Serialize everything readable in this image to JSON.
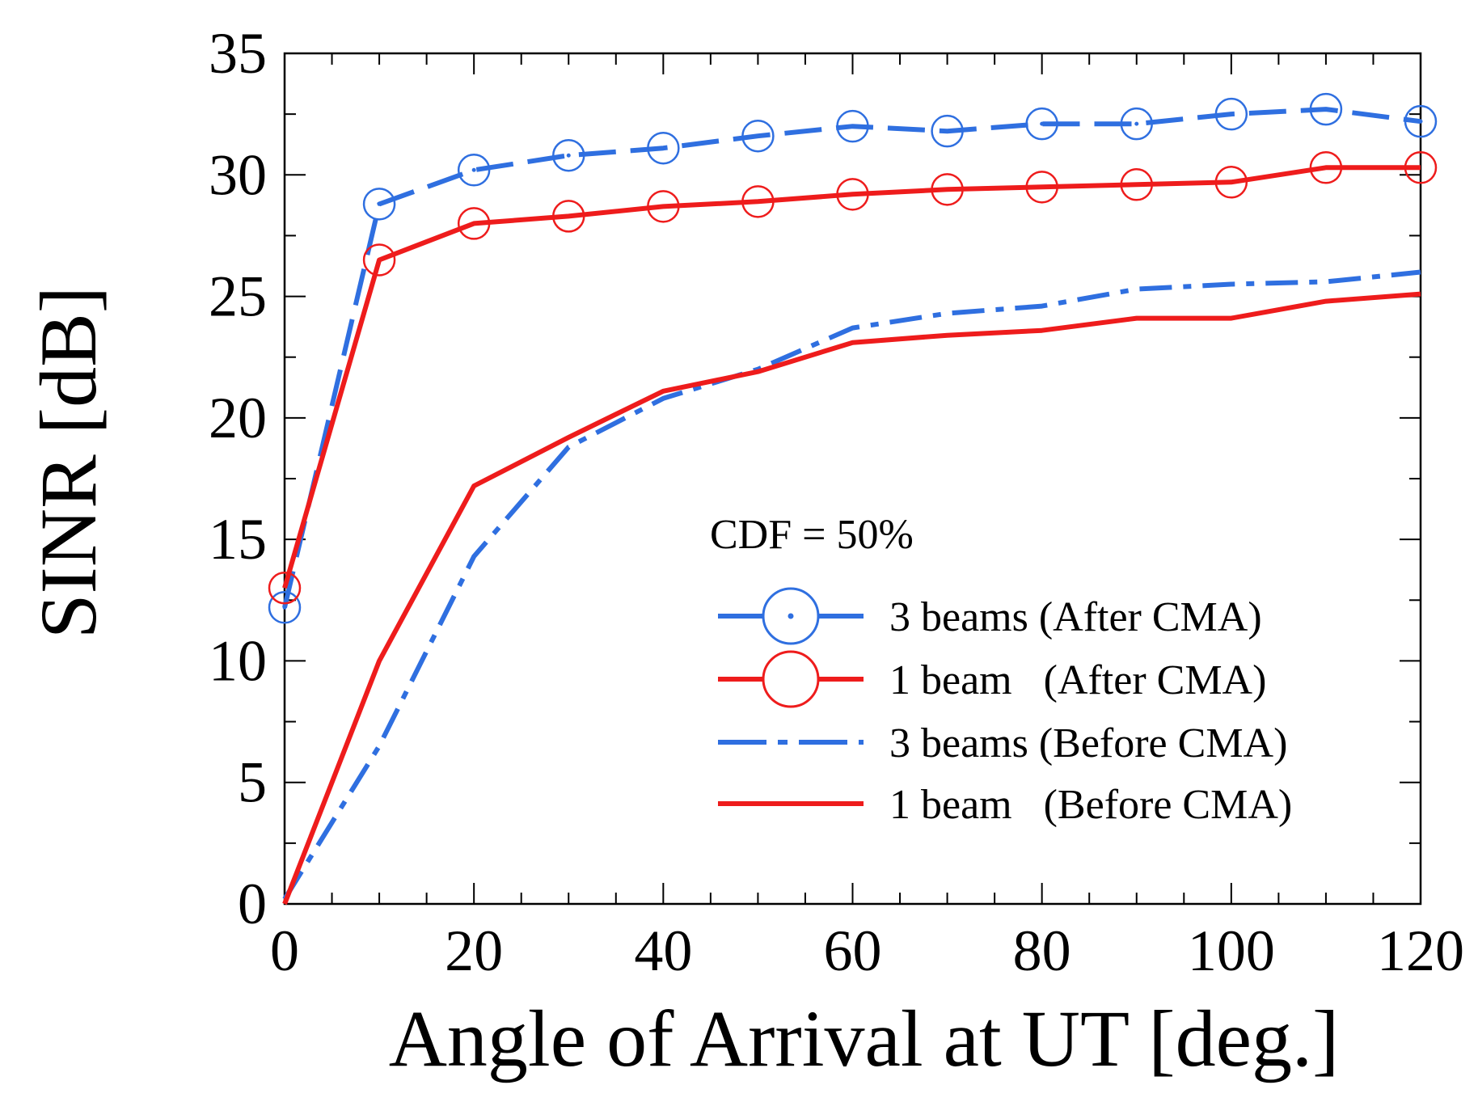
{
  "chart_data": {
    "type": "line",
    "xlabel": "Angle of Arrival at UT [deg.]",
    "ylabel": "SINR [dB]",
    "xlim": [
      0,
      120
    ],
    "ylim": [
      0,
      35
    ],
    "xticks": [
      0,
      20,
      40,
      60,
      80,
      100,
      120
    ],
    "yticks": [
      0,
      5,
      10,
      15,
      20,
      25,
      30,
      35
    ],
    "grid": false,
    "legend_position": "bottom-right",
    "annotation": "CDF = 50%",
    "series": [
      {
        "name": "3 beams (After CMA)",
        "color": "#2f6fe0",
        "line_style": "dashed",
        "marker": "circle-dot",
        "x": [
          0,
          10,
          20,
          30,
          40,
          50,
          60,
          70,
          80,
          90,
          100,
          110,
          120
        ],
        "y": [
          12.2,
          28.8,
          30.2,
          30.8,
          31.1,
          31.6,
          32.0,
          31.8,
          32.1,
          32.1,
          32.5,
          32.7,
          32.2
        ]
      },
      {
        "name": "1 beam   (After CMA)",
        "color": "#ee1c1c",
        "line_style": "solid",
        "marker": "circle",
        "x": [
          0,
          10,
          20,
          30,
          40,
          50,
          60,
          70,
          80,
          90,
          100,
          110,
          120
        ],
        "y": [
          13.0,
          26.5,
          28.0,
          28.3,
          28.7,
          28.9,
          29.2,
          29.4,
          29.5,
          29.6,
          29.7,
          30.3,
          30.3
        ]
      },
      {
        "name": "3 beams (Before CMA)",
        "color": "#2f6fe0",
        "line_style": "dash-dot",
        "marker": "none",
        "x": [
          0,
          10,
          20,
          30,
          40,
          50,
          60,
          70,
          80,
          90,
          100,
          110,
          120
        ],
        "y": [
          0.2,
          6.5,
          14.3,
          18.8,
          20.8,
          22.0,
          23.7,
          24.3,
          24.6,
          25.3,
          25.5,
          25.6,
          26.0
        ]
      },
      {
        "name": "1 beam   (Before CMA)",
        "color": "#ee1c1c",
        "line_style": "solid",
        "marker": "none",
        "x": [
          0,
          10,
          20,
          30,
          40,
          50,
          60,
          70,
          80,
          90,
          100,
          110,
          120
        ],
        "y": [
          0.0,
          10.0,
          17.2,
          19.2,
          21.1,
          21.9,
          23.1,
          23.4,
          23.6,
          24.1,
          24.1,
          24.8,
          25.1
        ]
      }
    ]
  }
}
